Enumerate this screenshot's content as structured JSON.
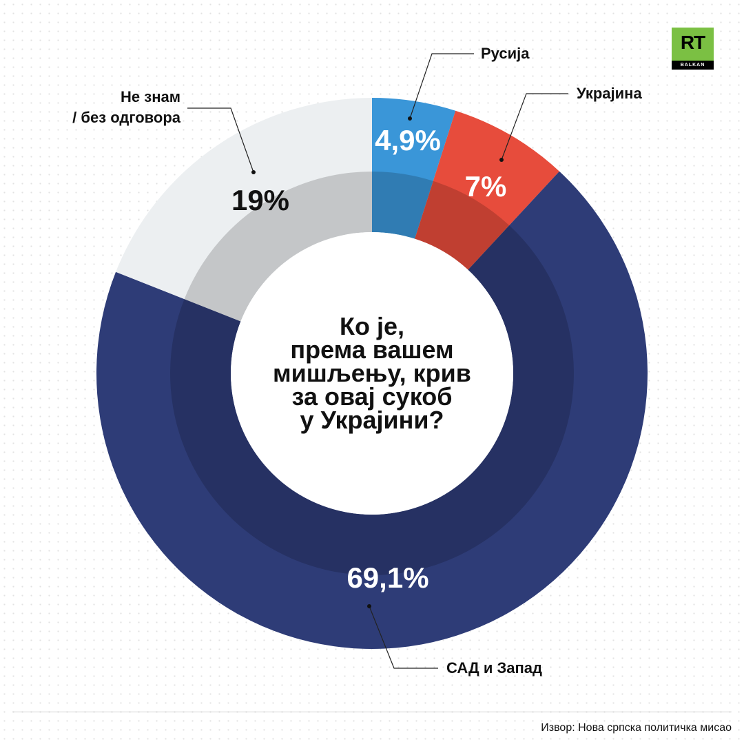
{
  "chart_data": {
    "type": "pie",
    "style": "donut",
    "center_text": [
      "Ко је,",
      "према вашем",
      "мишљењу, крив",
      "за овај сукоб",
      "у Украјини?"
    ],
    "slices": [
      {
        "label": "Русија",
        "value": 4.9,
        "value_label": "4,9%",
        "color": "#3a96d8",
        "label_color": "#ffffff"
      },
      {
        "label": "Украјина",
        "value": 7,
        "value_label": "7%",
        "color": "#e74c3c",
        "label_color": "#ffffff"
      },
      {
        "label": "САД и Запад",
        "value": 69.1,
        "value_label": "69,1%",
        "color": "#2e3c77",
        "label_color": "#ffffff"
      },
      {
        "label": "Не знам / без одговора",
        "label_lines": [
          "Не знам",
          "/ без одговора"
        ],
        "value": 19,
        "value_label": "19%",
        "color": "#eceff1",
        "label_color": "#111111"
      }
    ]
  },
  "logo": {
    "main": "RT",
    "sub": "BALKAN",
    "color": "#7bc043"
  },
  "source": "Извор: Нова српска политичка мисао"
}
